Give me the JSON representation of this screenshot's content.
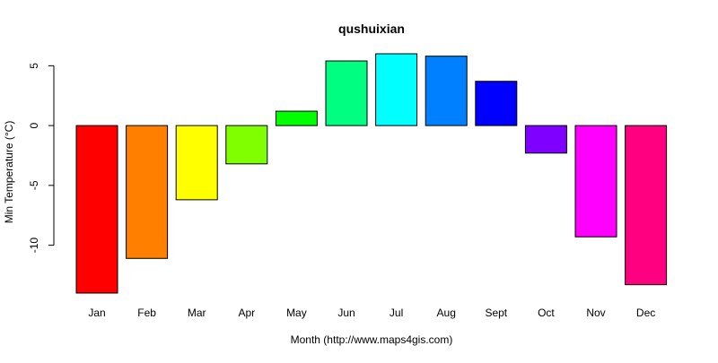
{
  "chart_data": {
    "type": "bar",
    "title": "qushuixian",
    "xlabel": "Month (http://www.maps4gis.com)",
    "ylabel": "Min Temperature (°C)",
    "categories": [
      "Jan",
      "Feb",
      "Mar",
      "Apr",
      "May",
      "Jun",
      "Jul",
      "Aug",
      "Sept",
      "Oct",
      "Nov",
      "Dec"
    ],
    "values": [
      -14.0,
      -11.1,
      -6.2,
      -3.2,
      1.2,
      5.4,
      6.0,
      5.8,
      3.7,
      -2.3,
      -9.3,
      -13.3
    ],
    "colors": [
      "#FF0000",
      "#FF8000",
      "#FFFF00",
      "#80FF00",
      "#00FF00",
      "#00FF80",
      "#00FFFF",
      "#0080FF",
      "#0000FF",
      "#8000FF",
      "#FF00FF",
      "#FF0080"
    ],
    "ylim": [
      -14.0,
      6.0
    ],
    "yticks": [
      -10,
      -5,
      0,
      5
    ],
    "grid": false,
    "legend": "none"
  }
}
